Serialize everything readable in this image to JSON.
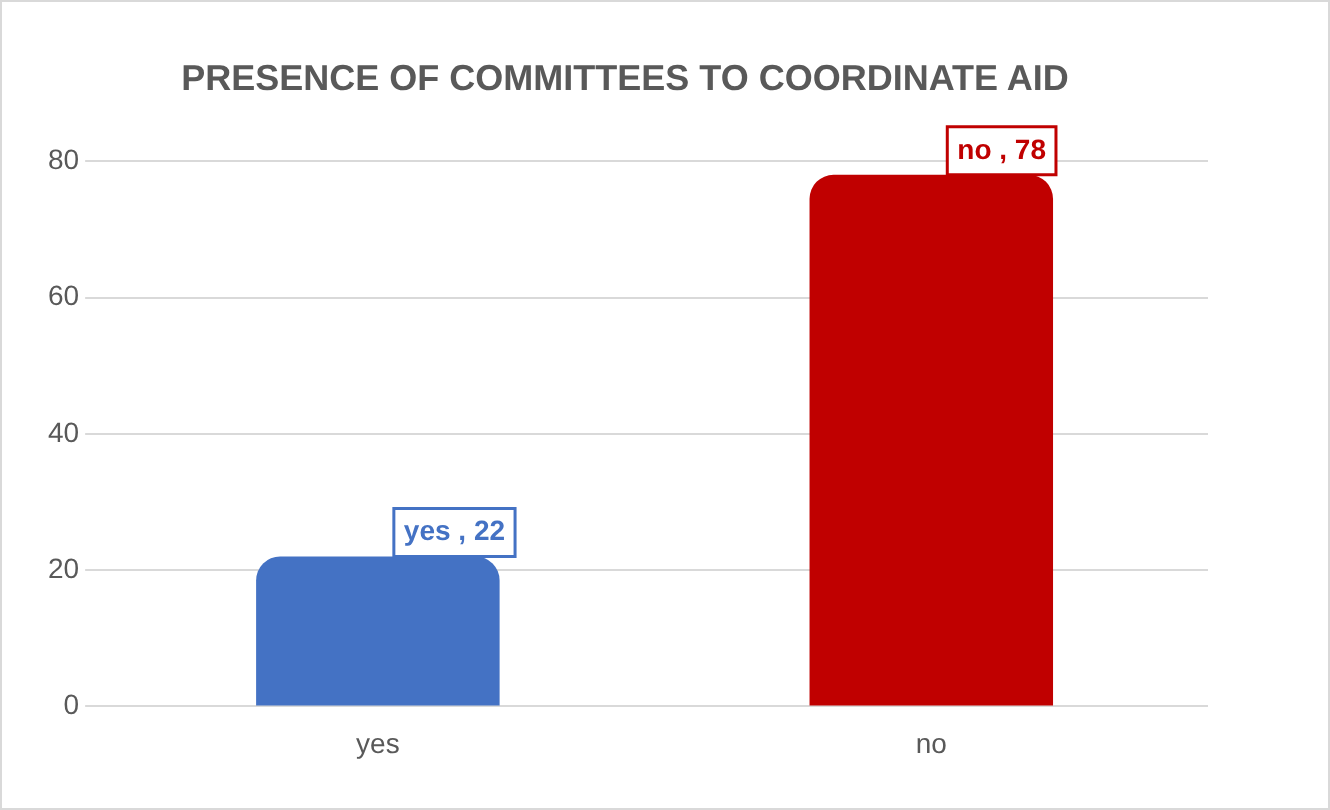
{
  "chart_data": {
    "type": "bar",
    "title": "PRESENCE OF COMMITTEES TO COORDINATE AID",
    "categories": [
      "yes",
      "no"
    ],
    "values": [
      22,
      78
    ],
    "colors": [
      "#4472c4",
      "#c00000"
    ],
    "value_labels": [
      "yes , 22",
      "no , 78"
    ],
    "ylim": [
      0,
      80
    ],
    "yticks": [
      0,
      20,
      40,
      60,
      80
    ],
    "grid": "y",
    "legend": false
  }
}
